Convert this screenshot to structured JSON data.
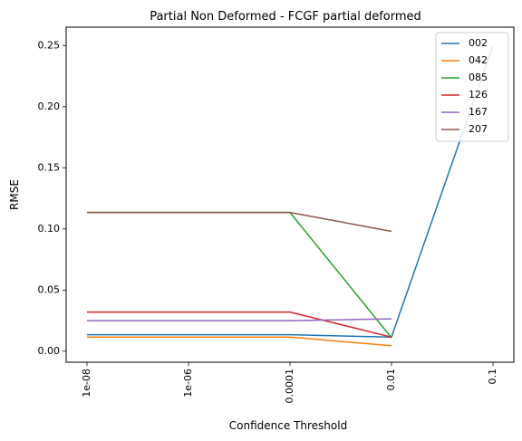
{
  "chart_data": {
    "type": "line",
    "title": "Partial Non Deformed - FCGF partial deformed",
    "xlabel": "Confidence Threshold",
    "ylabel": "RMSE",
    "x_categories": [
      "1e-08",
      "1e-06",
      "0.0001",
      "0.01",
      "0.1"
    ],
    "y_ticks": [
      "0.00",
      "0.05",
      "0.10",
      "0.15",
      "0.20",
      "0.25"
    ],
    "ylim": [
      -0.009,
      0.265
    ],
    "grid": false,
    "legend_position": "top-right",
    "series": [
      {
        "name": "002",
        "color": "#1f77b4",
        "values": [
          0.0135,
          0.0135,
          0.0135,
          0.0115,
          0.25
        ]
      },
      {
        "name": "042",
        "color": "#ff7f0e",
        "values": [
          0.0115,
          0.0115,
          0.0115,
          0.0045,
          null
        ]
      },
      {
        "name": "085",
        "color": "#2ca02c",
        "values": [
          0.1135,
          0.1135,
          0.1135,
          0.011,
          null
        ]
      },
      {
        "name": "126",
        "color": "#d62728",
        "values": [
          0.032,
          0.032,
          0.032,
          0.0115,
          null
        ]
      },
      {
        "name": "167",
        "color": "#9467bd",
        "values": [
          0.025,
          0.025,
          0.025,
          0.0265,
          null
        ]
      },
      {
        "name": "207",
        "color": "#8c564b",
        "values": [
          0.1135,
          0.1135,
          0.1135,
          0.098,
          null
        ]
      }
    ]
  }
}
